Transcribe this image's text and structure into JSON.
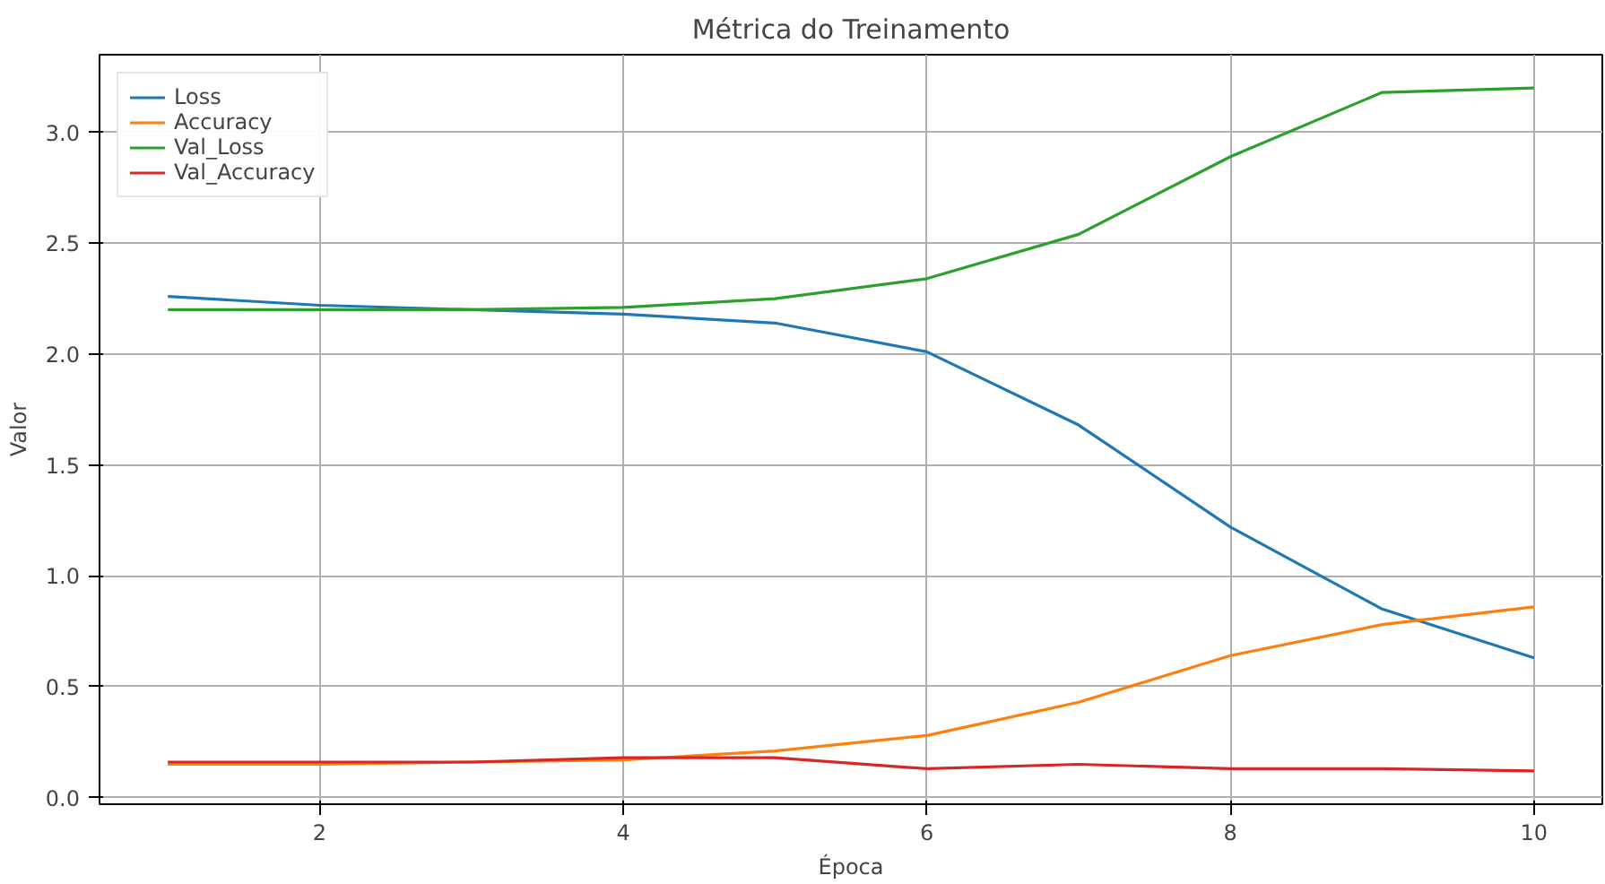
{
  "chart_data": {
    "type": "line",
    "title": "Métrica do Treinamento",
    "xlabel": "Época",
    "ylabel": "Valor",
    "x": [
      1,
      2,
      3,
      4,
      5,
      6,
      7,
      8,
      9,
      10
    ],
    "series": [
      {
        "name": "Loss",
        "color": "#1f77b4",
        "values": [
          2.26,
          2.22,
          2.2,
          2.18,
          2.14,
          2.01,
          1.68,
          1.22,
          0.85,
          0.63
        ]
      },
      {
        "name": "Accuracy",
        "color": "#ff7f0e",
        "values": [
          0.15,
          0.15,
          0.16,
          0.17,
          0.21,
          0.28,
          0.43,
          0.64,
          0.78,
          0.86
        ]
      },
      {
        "name": "Val_Loss",
        "color": "#2ca02c",
        "values": [
          2.2,
          2.2,
          2.2,
          2.21,
          2.25,
          2.34,
          2.54,
          2.89,
          3.18,
          3.2
        ]
      },
      {
        "name": "Val_Accuracy",
        "color": "#d62728",
        "values": [
          0.16,
          0.16,
          0.16,
          0.18,
          0.18,
          0.13,
          0.15,
          0.13,
          0.13,
          0.12
        ]
      }
    ],
    "xlim": [
      0.55,
      10.45
    ],
    "ylim": [
      -0.03,
      3.35
    ],
    "xticks": [
      2,
      4,
      6,
      8,
      10
    ],
    "yticks": [
      {
        "value": 0,
        "label": "0.0"
      },
      0.5,
      {
        "value": 1,
        "label": "1.0"
      },
      1.5,
      {
        "value": 2,
        "label": "2.0"
      },
      2.5,
      {
        "value": 3,
        "label": "3.0"
      }
    ],
    "grid": true,
    "legend": "top left",
    "line_style": "solid",
    "marker": "none"
  }
}
